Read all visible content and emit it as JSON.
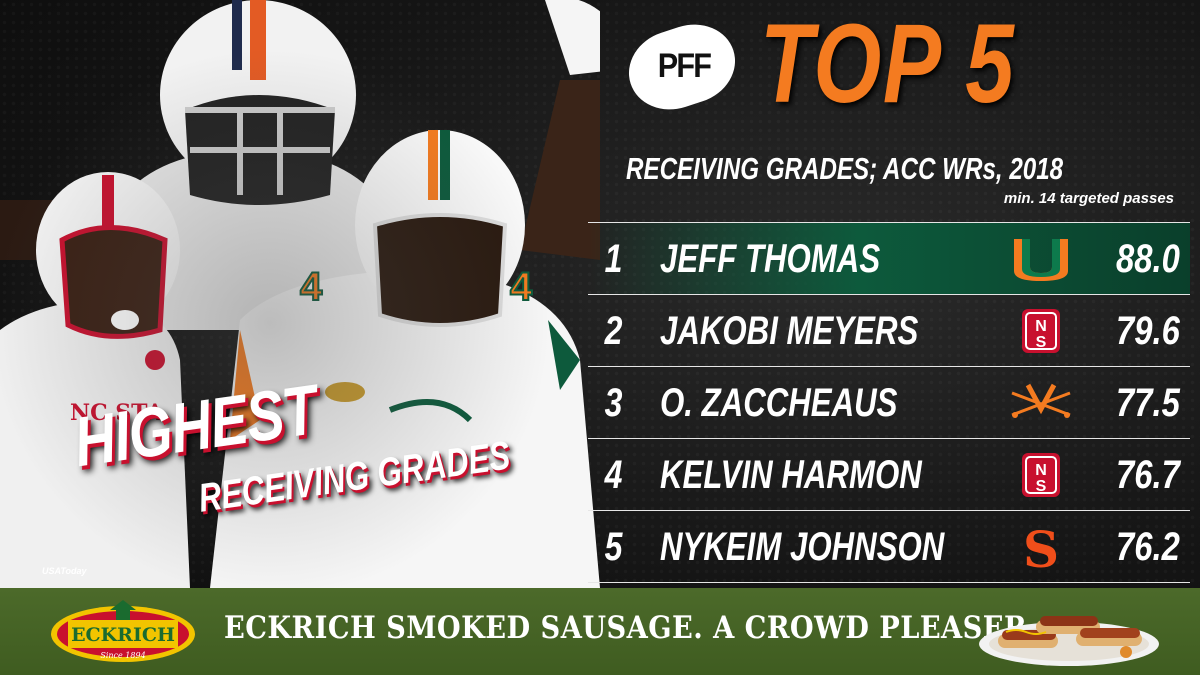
{
  "brand": {
    "logo_text": "PFF"
  },
  "header": {
    "title": "TOP 5",
    "subtitle": "RECEIVING GRADES; ACC WRs, 2018",
    "note": "min. 14 targeted passes"
  },
  "headline": {
    "big": "HIGHEST",
    "small": "RECEIVING GRADES"
  },
  "photo_credit": "USAToday",
  "rankings": [
    {
      "rank": "1",
      "name": "JEFF THOMAS",
      "team_logo": "miami-u-logo",
      "grade": "88.0"
    },
    {
      "rank": "2",
      "name": "JAKOBI MEYERS",
      "team_logo": "nc-state-logo",
      "grade": "79.6"
    },
    {
      "rank": "3",
      "name": "O. ZACCHEAUS",
      "team_logo": "virginia-sabres-logo",
      "grade": "77.5"
    },
    {
      "rank": "4",
      "name": "KELVIN HARMON",
      "team_logo": "nc-state-logo",
      "grade": "76.7"
    },
    {
      "rank": "5",
      "name": "NYKEIM JOHNSON",
      "team_logo": "syracuse-s-logo",
      "grade": "76.2"
    }
  ],
  "ad": {
    "brand": "ECKRICH",
    "since": "Since 1894",
    "tagline": "ECKRICH SMOKED SAUSAGE. A CROWD PLEASER."
  },
  "colors": {
    "accent": "#f47b20",
    "highlight_row": "#0d5a3c",
    "ad_bg": "#4c6a2a",
    "red": "#c8102e"
  }
}
